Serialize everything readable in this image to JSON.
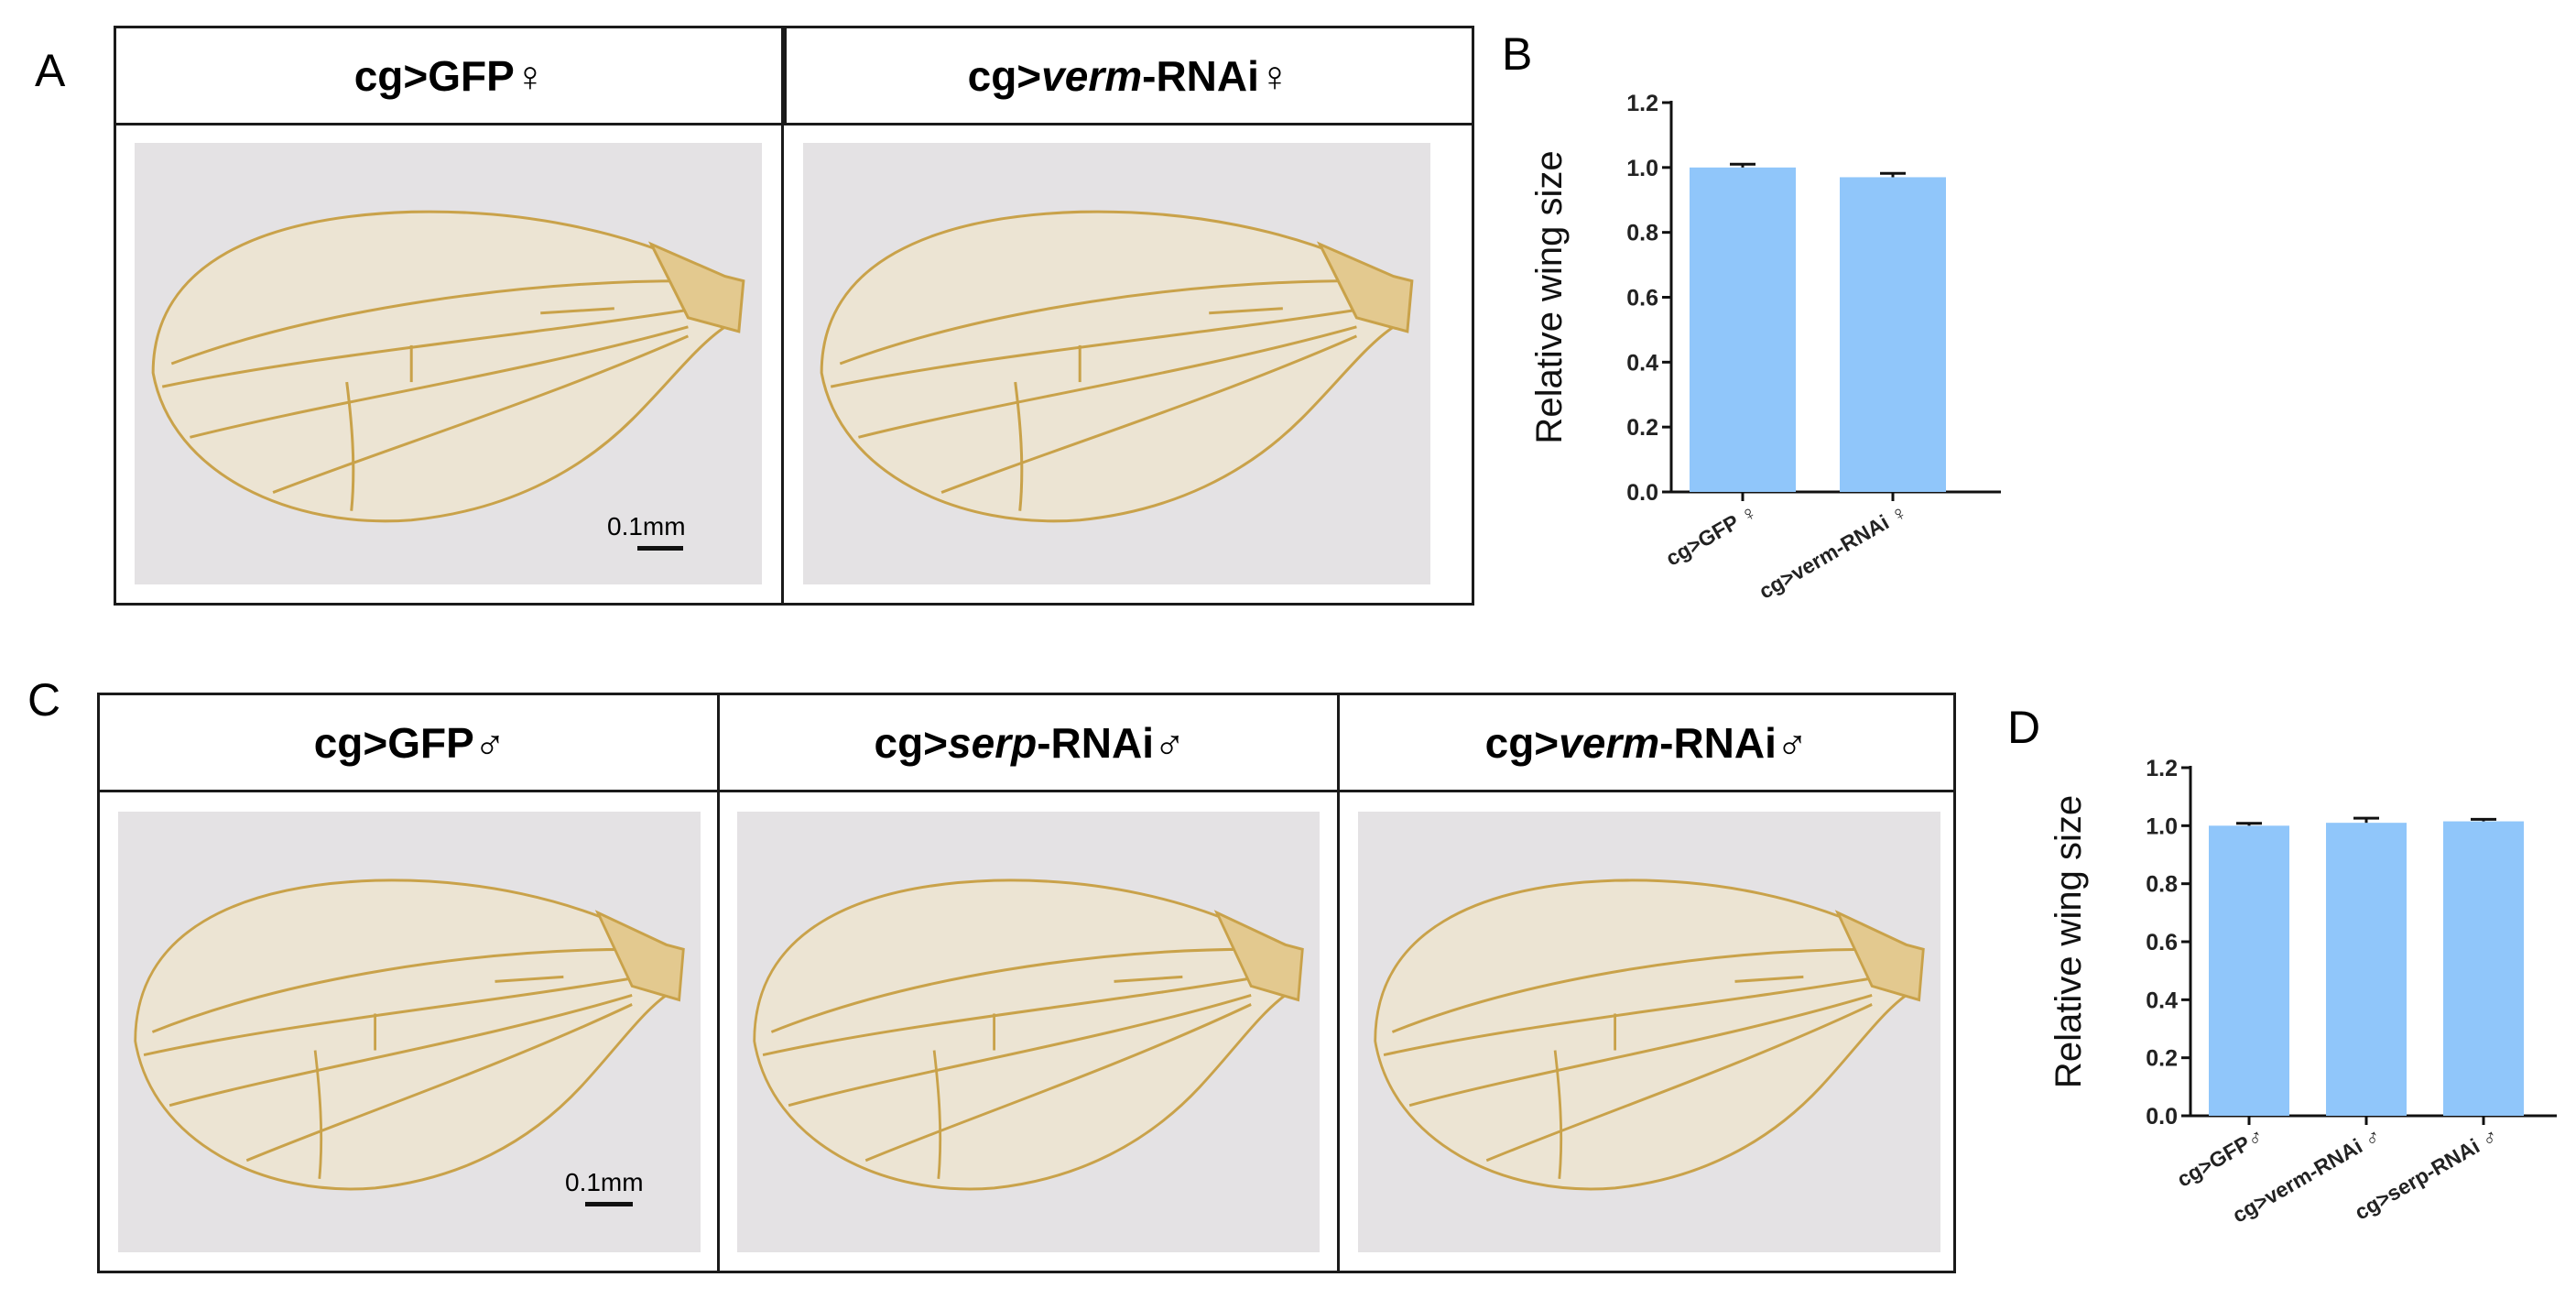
{
  "panels": {
    "A": {
      "letter": "A",
      "headers": [
        {
          "prefix": "cg>",
          "italic": "",
          "suffix": "GFP♀"
        },
        {
          "prefix": "cg>",
          "italic": "verm",
          "suffix": "-RNAi♀"
        }
      ],
      "scale_label": "0.1mm"
    },
    "B": {
      "letter": "B"
    },
    "C": {
      "letter": "C",
      "headers": [
        {
          "prefix": "cg>",
          "italic": "",
          "suffix": "GFP♂"
        },
        {
          "prefix": "cg>",
          "italic": "serp",
          "suffix": "-RNAi♂"
        },
        {
          "prefix": "cg>",
          "italic": "verm",
          "suffix": "-RNAi♂"
        }
      ],
      "scale_label": "0.1mm"
    },
    "D": {
      "letter": "D"
    }
  },
  "colors": {
    "bar": "#90c6fa",
    "wing_vein": "#c9a24a",
    "wing_fill": "#ece4d3",
    "photo_bg": "#e4e2e4"
  },
  "chart_data": [
    {
      "type": "bar",
      "panel": "B",
      "categories": [
        "cg>GFP ♀",
        "cg>verm-RNAi ♀"
      ],
      "values": [
        1.0,
        0.97
      ],
      "errors": [
        0.01,
        0.012
      ],
      "ylabel": "Relative wing size",
      "ylim": [
        0,
        1.2
      ],
      "yticks": [
        "0.0",
        "0.2",
        "0.4",
        "0.6",
        "0.8",
        "1.0",
        "1.2"
      ]
    },
    {
      "type": "bar",
      "panel": "D",
      "categories": [
        "cg>GFP♂",
        "cg>verm-RNAi ♂",
        "cg>serp-RNAi ♂"
      ],
      "values": [
        1.0,
        1.01,
        1.015
      ],
      "errors": [
        0.008,
        0.016,
        0.007
      ],
      "ylabel": "Relative wing size",
      "ylim": [
        0,
        1.2
      ],
      "yticks": [
        "0.0",
        "0.2",
        "0.4",
        "0.6",
        "0.8",
        "1.0",
        "1.2"
      ]
    }
  ]
}
